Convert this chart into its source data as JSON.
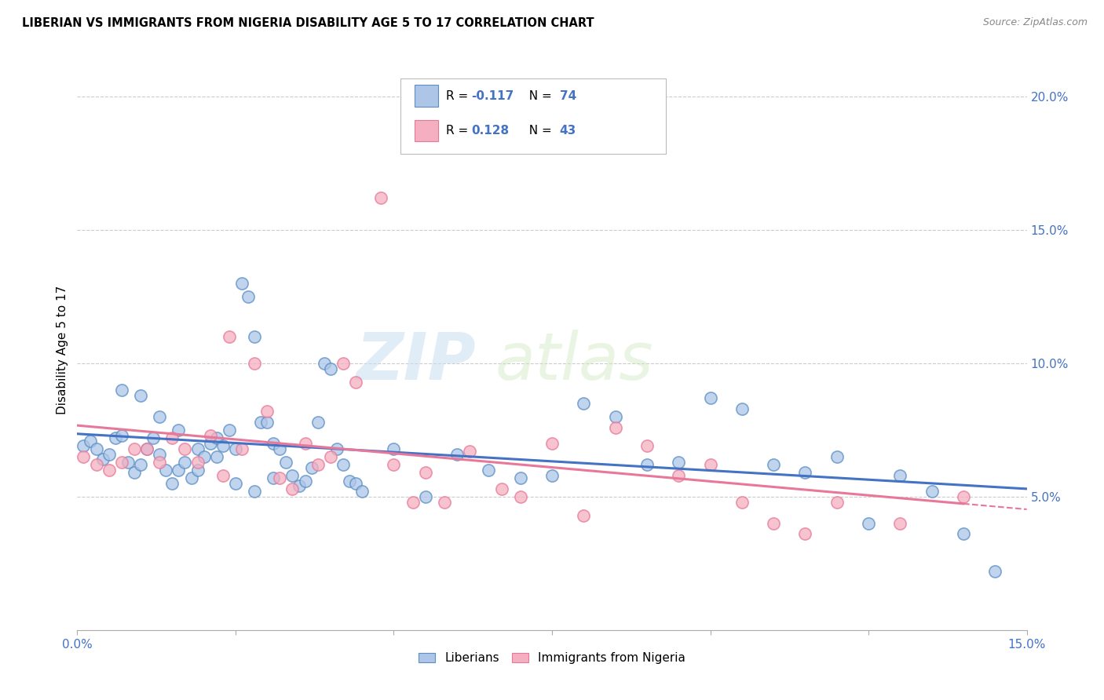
{
  "title": "LIBERIAN VS IMMIGRANTS FROM NIGERIA DISABILITY AGE 5 TO 17 CORRELATION CHART",
  "source": "Source: ZipAtlas.com",
  "ylabel": "Disability Age 5 to 17",
  "xlim": [
    0.0,
    0.15
  ],
  "ylim": [
    0.0,
    0.21
  ],
  "x_ticks": [
    0.0,
    0.025,
    0.05,
    0.075,
    0.1,
    0.125,
    0.15
  ],
  "y_ticks_right": [
    0.05,
    0.1,
    0.15,
    0.2
  ],
  "y_tick_labels_right": [
    "5.0%",
    "10.0%",
    "15.0%",
    "20.0%"
  ],
  "liberian_color": "#adc6e8",
  "nigeria_color": "#f5afc0",
  "liberian_edge_color": "#5b8ec4",
  "nigeria_edge_color": "#e8789a",
  "liberian_line_color": "#4472c4",
  "nigeria_line_color": "#e8789a",
  "legend_entry_1": "Liberians",
  "legend_entry_2": "Immigrants from Nigeria",
  "watermark_zip": "ZIP",
  "watermark_atlas": "atlas",
  "liberian_x": [
    0.001,
    0.002,
    0.003,
    0.004,
    0.005,
    0.006,
    0.007,
    0.008,
    0.009,
    0.01,
    0.011,
    0.012,
    0.013,
    0.014,
    0.015,
    0.016,
    0.017,
    0.018,
    0.019,
    0.02,
    0.021,
    0.022,
    0.023,
    0.024,
    0.025,
    0.026,
    0.027,
    0.028,
    0.029,
    0.03,
    0.031,
    0.032,
    0.033,
    0.034,
    0.035,
    0.036,
    0.037,
    0.038,
    0.039,
    0.04,
    0.041,
    0.042,
    0.043,
    0.044,
    0.045,
    0.05,
    0.055,
    0.06,
    0.065,
    0.07,
    0.075,
    0.08,
    0.085,
    0.09,
    0.095,
    0.1,
    0.105,
    0.11,
    0.115,
    0.12,
    0.125,
    0.13,
    0.135,
    0.14,
    0.145,
    0.007,
    0.01,
    0.013,
    0.016,
    0.019,
    0.022,
    0.025,
    0.028,
    0.031
  ],
  "liberian_y": [
    0.069,
    0.071,
    0.068,
    0.064,
    0.066,
    0.072,
    0.073,
    0.063,
    0.059,
    0.062,
    0.068,
    0.072,
    0.066,
    0.06,
    0.055,
    0.06,
    0.063,
    0.057,
    0.068,
    0.065,
    0.07,
    0.072,
    0.069,
    0.075,
    0.068,
    0.13,
    0.125,
    0.11,
    0.078,
    0.078,
    0.07,
    0.068,
    0.063,
    0.058,
    0.054,
    0.056,
    0.061,
    0.078,
    0.1,
    0.098,
    0.068,
    0.062,
    0.056,
    0.055,
    0.052,
    0.068,
    0.05,
    0.066,
    0.06,
    0.057,
    0.058,
    0.085,
    0.08,
    0.062,
    0.063,
    0.087,
    0.083,
    0.062,
    0.059,
    0.065,
    0.04,
    0.058,
    0.052,
    0.036,
    0.022,
    0.09,
    0.088,
    0.08,
    0.075,
    0.06,
    0.065,
    0.055,
    0.052,
    0.057
  ],
  "nigeria_x": [
    0.001,
    0.003,
    0.005,
    0.007,
    0.009,
    0.011,
    0.013,
    0.015,
    0.017,
    0.019,
    0.021,
    0.023,
    0.024,
    0.026,
    0.028,
    0.03,
    0.032,
    0.034,
    0.036,
    0.038,
    0.04,
    0.042,
    0.044,
    0.048,
    0.05,
    0.053,
    0.055,
    0.058,
    0.062,
    0.067,
    0.07,
    0.075,
    0.08,
    0.085,
    0.09,
    0.095,
    0.1,
    0.105,
    0.11,
    0.115,
    0.12,
    0.13,
    0.14
  ],
  "nigeria_y": [
    0.065,
    0.062,
    0.06,
    0.063,
    0.068,
    0.068,
    0.063,
    0.072,
    0.068,
    0.063,
    0.073,
    0.058,
    0.11,
    0.068,
    0.1,
    0.082,
    0.057,
    0.053,
    0.07,
    0.062,
    0.065,
    0.1,
    0.093,
    0.162,
    0.062,
    0.048,
    0.059,
    0.048,
    0.067,
    0.053,
    0.05,
    0.07,
    0.043,
    0.076,
    0.069,
    0.058,
    0.062,
    0.048,
    0.04,
    0.036,
    0.048,
    0.04,
    0.05
  ]
}
